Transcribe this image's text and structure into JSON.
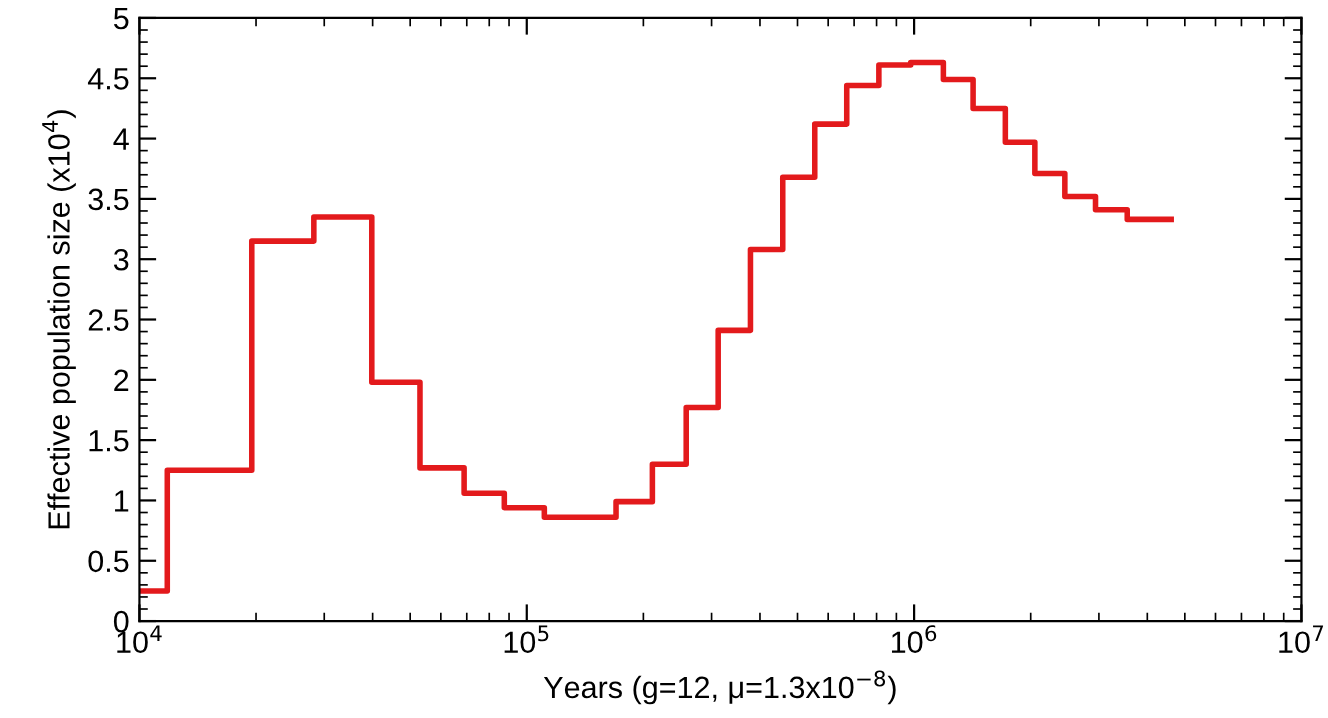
{
  "chart_data": {
    "type": "step",
    "xlabel": "Years (g=12, μ=1.3x10$^{−8}$)",
    "ylabel": "Effective population size (x10$^{4}$)",
    "log": "x",
    "xlim": [
      10000,
      10000000
    ],
    "xticks": [
      {
        "value": 10000,
        "label": "10$^{4}$"
      },
      {
        "value": 100000,
        "label": "10$^{5}$"
      },
      {
        "value": 1000000,
        "label": "10$^{6}$"
      },
      {
        "value": 10000000,
        "label": "10$^{7}$"
      }
    ],
    "ylim": [
      0,
      5
    ],
    "yticks": [
      0,
      0.5,
      1,
      1.5,
      2,
      2.5,
      3,
      3.5,
      4,
      4.5,
      5
    ],
    "grid": false,
    "legend": false,
    "marker": "none",
    "line_style": "solid",
    "series": [
      {
        "color": "#e31a1c",
        "x": [
          10000,
          11800,
          19500,
          28200,
          39800,
          53000,
          68900,
          87500,
          111000,
          170000,
          211000,
          258000,
          312000,
          378000,
          458000,
          554000,
          670000,
          811000,
          980000,
          1190000,
          1420000,
          1720000,
          2050000,
          2450000,
          2940000,
          3550000,
          4610000
        ],
        "values": [
          0.25,
          1.25,
          3.15,
          3.35,
          1.98,
          1.27,
          1.06,
          0.94,
          0.86,
          0.99,
          1.3,
          1.77,
          2.41,
          3.08,
          3.68,
          4.12,
          4.44,
          4.61,
          4.63,
          4.49,
          4.25,
          3.97,
          3.71,
          3.52,
          3.41,
          3.33,
          3.33
        ]
      }
    ]
  }
}
